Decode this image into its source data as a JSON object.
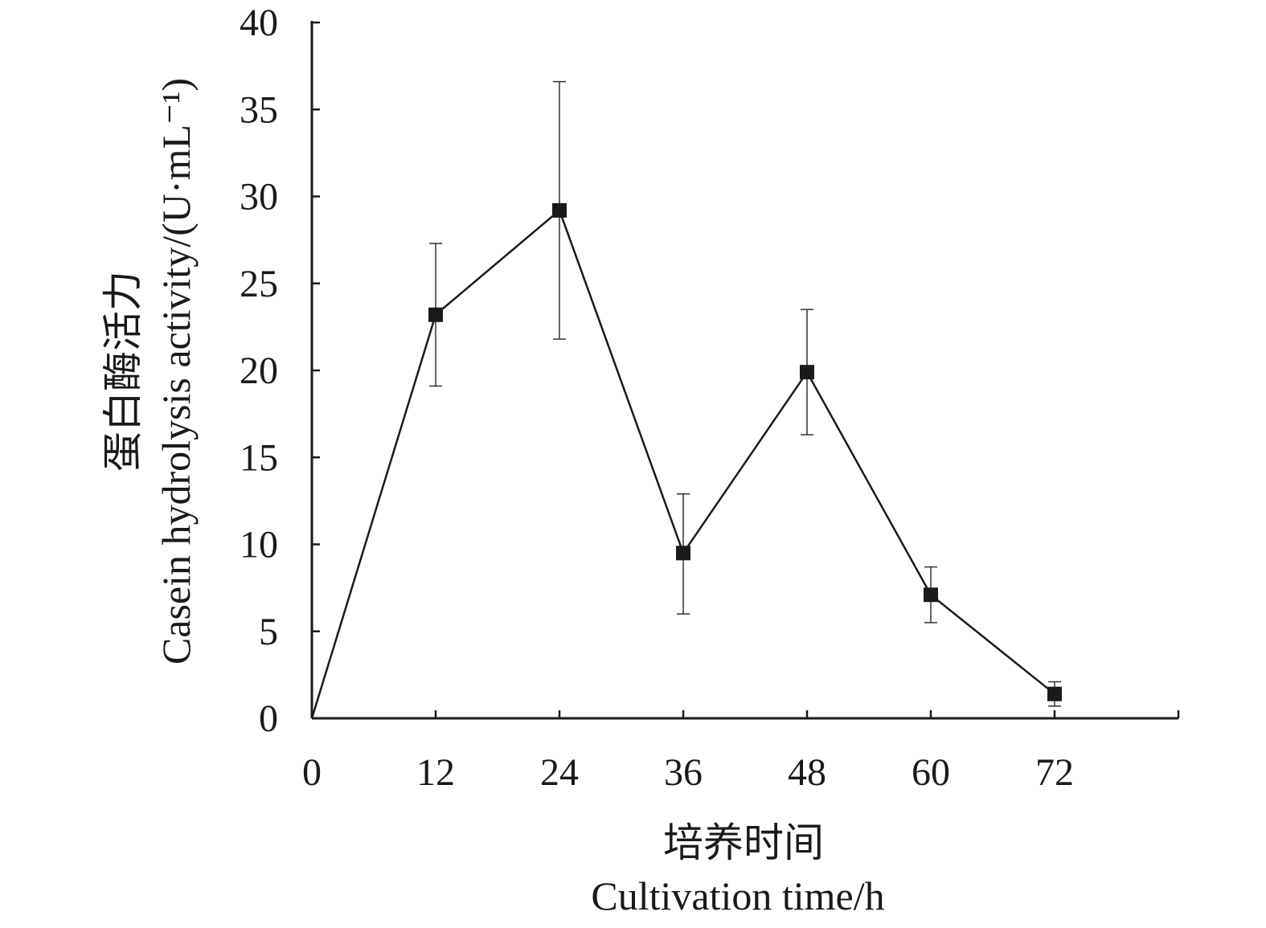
{
  "chart_data": {
    "type": "line",
    "x": [
      0,
      12,
      24,
      36,
      48,
      60,
      72
    ],
    "xlabel_cn": "培养时间",
    "xlabel_en": "Cultivation time/h",
    "ylabel_cn": "蛋白酶活力",
    "ylabel_en": "Casein hydrolysis activity/(U·mL⁻¹)",
    "xlim": [
      0,
      84
    ],
    "ylim": [
      0,
      40
    ],
    "x_ticks": [
      0,
      12,
      24,
      36,
      48,
      60,
      72
    ],
    "y_ticks": [
      0,
      5,
      10,
      15,
      20,
      25,
      30,
      35,
      40
    ],
    "series": [
      {
        "values": [
          0,
          23.2,
          29.2,
          9.5,
          19.9,
          7.1,
          1.4
        ],
        "error_upper": [
          null,
          27.3,
          36.6,
          12.9,
          23.5,
          8.7,
          2.1
        ],
        "error_lower": [
          null,
          19.1,
          21.8,
          6.0,
          16.3,
          5.5,
          0.7
        ],
        "marker": "square",
        "color": "#1a1a1a"
      }
    ],
    "grid": false,
    "legend": "none"
  }
}
